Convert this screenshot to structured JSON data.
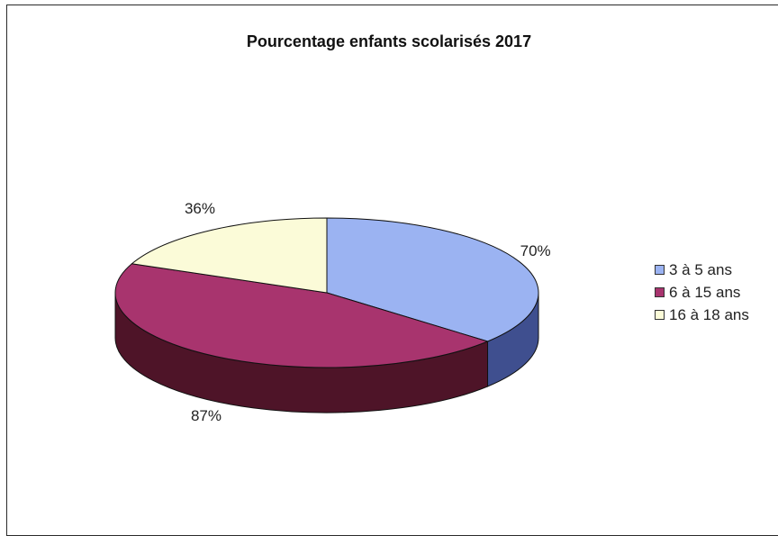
{
  "chart_data": {
    "type": "pie",
    "title": "Pourcentage enfants scolarisés 2017",
    "slices": [
      {
        "label": "3 à 5 ans",
        "value": 70,
        "value_label": "70%",
        "color": "#9bb3f2",
        "side_color": "#3f4f8f"
      },
      {
        "label": "6 à 15 ans",
        "value": 87,
        "value_label": "87%",
        "color": "#a8346e",
        "side_color": "#4e1428"
      },
      {
        "label": "16 à 18 ans",
        "value": 36,
        "value_label": "36%",
        "color": "#fbfbd8",
        "side_color": "#c9c9a6"
      }
    ],
    "legend_position": "right",
    "style": "3d-pie"
  }
}
